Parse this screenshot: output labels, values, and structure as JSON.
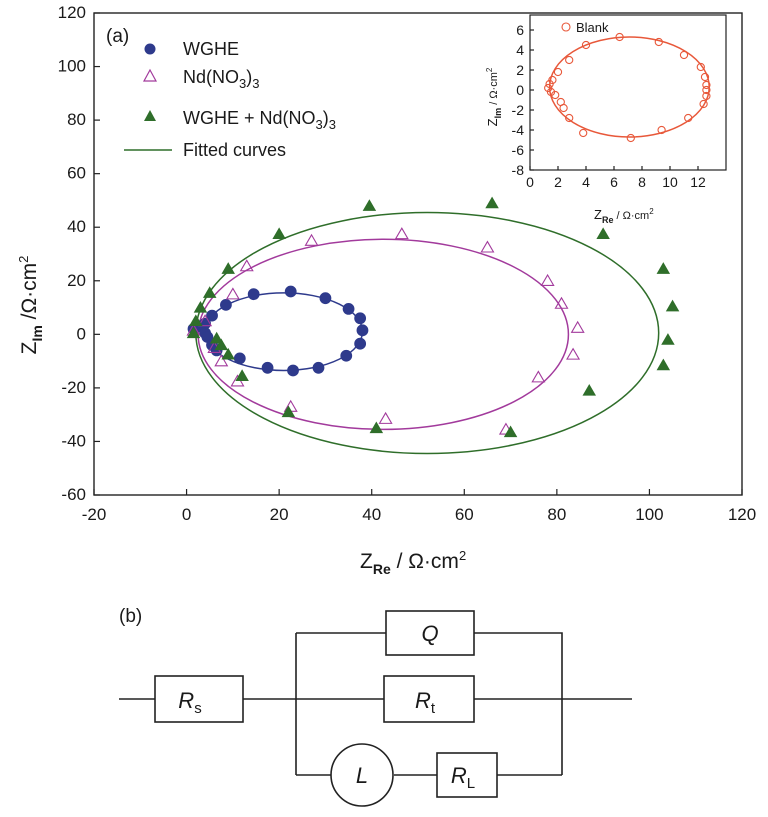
{
  "figure": {
    "panel_a_label": "(a)",
    "panel_b_label": "(b)"
  },
  "colors": {
    "wghe": "#2e3a8c",
    "nd": "#a23a9c",
    "wghe_nd": "#2f6e2a",
    "blank": "#e8583a",
    "axis": "#222222"
  },
  "chart_data": [
    {
      "type": "scatter",
      "title": "",
      "xlabel": "Z_Re / Ω·cm²",
      "xlabel_main": "Z",
      "xlabel_sub": "Re",
      "xlabel_unit": " / Ω·cm",
      "xlabel_sup": "2",
      "ylabel_main": "Z",
      "ylabel_sub": "Im",
      "ylabel_unit": " /Ω·cm",
      "ylabel_sup": "2",
      "xlim": [
        -20,
        120
      ],
      "ylim": [
        -60,
        120
      ],
      "xticks": [
        "-20",
        "0",
        "20",
        "40",
        "60",
        "80",
        "100",
        "120"
      ],
      "yticks": [
        "-60",
        "-40",
        "-20",
        "0",
        "20",
        "40",
        "60",
        "80",
        "100",
        "120"
      ],
      "legend_position": "top-left",
      "legend": {
        "wghe": "WGHE",
        "nd_main": "Nd(NO",
        "nd_sub": "3",
        "nd_close": ")",
        "nd_sub2": "3",
        "mix_main": "WGHE + Nd(NO",
        "mix_sub": "3",
        "mix_close": ")",
        "mix_sub2": "3",
        "fit": "Fitted curves"
      },
      "series": [
        {
          "key": "wghe",
          "marker": "circle",
          "points": [
            [
              1.5,
              2
            ],
            [
              2.5,
              3
            ],
            [
              4,
              4
            ],
            [
              4,
              0.5
            ],
            [
              4.5,
              -1
            ],
            [
              5.5,
              -4
            ],
            [
              6.5,
              -6
            ],
            [
              5.5,
              7
            ],
            [
              8.5,
              11
            ],
            [
              14.5,
              15
            ],
            [
              22.5,
              16
            ],
            [
              30,
              13.5
            ],
            [
              35,
              9.5
            ],
            [
              37.5,
              6
            ],
            [
              38,
              1.5
            ],
            [
              37.5,
              -3.5
            ],
            [
              34.5,
              -8
            ],
            [
              28.5,
              -12.5
            ],
            [
              23,
              -13.5
            ],
            [
              17.5,
              -12.5
            ],
            [
              11.5,
              -9
            ]
          ],
          "fit": {
            "cx": 21,
            "cy": 1,
            "rx": 17,
            "ry": 14.5
          }
        },
        {
          "key": "nd",
          "marker": "triangle-open",
          "points": [
            [
              1.5,
              1.5
            ],
            [
              4,
              5
            ],
            [
              6,
              -5
            ],
            [
              7.5,
              -10
            ],
            [
              10,
              15
            ],
            [
              13,
              25.5
            ],
            [
              27,
              35
            ],
            [
              46.5,
              37.5
            ],
            [
              65,
              32.5
            ],
            [
              78,
              20
            ],
            [
              81,
              11.5
            ],
            [
              84.5,
              2.5
            ],
            [
              83.5,
              -7.5
            ],
            [
              76,
              -16
            ],
            [
              69,
              -35.5
            ],
            [
              43,
              -31.5
            ],
            [
              22.5,
              -27
            ],
            [
              11,
              -17.5
            ]
          ],
          "fit": {
            "cx": 42.5,
            "cy": 0,
            "rx": 40,
            "ry": 35.5
          }
        },
        {
          "key": "wghe_nd",
          "marker": "triangle-filled",
          "points": [
            [
              1.5,
              0.5
            ],
            [
              2,
              5
            ],
            [
              3,
              10
            ],
            [
              5,
              15.5
            ],
            [
              9,
              24.5
            ],
            [
              20,
              37.5
            ],
            [
              39.5,
              48
            ],
            [
              66,
              49
            ],
            [
              90,
              37.5
            ],
            [
              103,
              24.5
            ],
            [
              105,
              10.5
            ],
            [
              104,
              -2
            ],
            [
              103,
              -11.5
            ],
            [
              87,
              -21
            ],
            [
              70,
              -36.5
            ],
            [
              41,
              -35
            ],
            [
              22,
              -29
            ],
            [
              12,
              -15.5
            ],
            [
              9,
              -7.5
            ],
            [
              7.5,
              -4
            ],
            [
              6.5,
              -1.5
            ]
          ],
          "fit": {
            "cx": 52,
            "cy": 0.5,
            "rx": 50,
            "ry": 45
          }
        }
      ]
    },
    {
      "type": "scatter",
      "title": "",
      "inset": true,
      "xlabel_main": "Z",
      "xlabel_sub": "Re",
      "xlabel_unit": " / Ω·cm",
      "xlabel_sup": "2",
      "ylabel_main": "Z",
      "ylabel_sub": "Im",
      "ylabel_unit": " / Ω·cm",
      "ylabel_sup": "2",
      "xlim": [
        0,
        14
      ],
      "ylim": [
        -8,
        7.5
      ],
      "xticks": [
        "0",
        "2",
        "4",
        "6",
        "8",
        "10",
        "12"
      ],
      "yticks": [
        "-8",
        "-6",
        "-4",
        "-2",
        "0",
        "2",
        "4",
        "6"
      ],
      "legend_position": "top-left",
      "legend": {
        "blank": "Blank"
      },
      "series": [
        {
          "key": "blank",
          "marker": "circle-open",
          "points": [
            [
              1.3,
              0.2
            ],
            [
              1.4,
              0.6
            ],
            [
              1.5,
              -0.2
            ],
            [
              1.6,
              1.0
            ],
            [
              1.8,
              -0.5
            ],
            [
              2.0,
              1.8
            ],
            [
              2.2,
              -1.2
            ],
            [
              2.4,
              -1.8
            ],
            [
              2.8,
              3.0
            ],
            [
              2.8,
              -2.8
            ],
            [
              3.8,
              -4.3
            ],
            [
              4.0,
              4.5
            ],
            [
              6.4,
              5.3
            ],
            [
              7.2,
              -4.8
            ],
            [
              9.2,
              4.8
            ],
            [
              9.4,
              -4.0
            ],
            [
              11.0,
              3.5
            ],
            [
              11.3,
              -2.8
            ],
            [
              12.2,
              2.3
            ],
            [
              12.5,
              1.3
            ],
            [
              12.6,
              0.5
            ],
            [
              12.6,
              0.0
            ],
            [
              12.6,
              -0.6
            ],
            [
              12.4,
              -1.4
            ]
          ],
          "fit": {
            "cx": 7.1,
            "cy": 0.3,
            "rx": 5.7,
            "ry": 5.0
          }
        }
      ]
    }
  ],
  "circuit": {
    "rs_main": "R",
    "rs_sub": "s",
    "q": "Q",
    "rt_main": "R",
    "rt_sub": "t",
    "l": "L",
    "rl_main": "R",
    "rl_sub": "L"
  }
}
